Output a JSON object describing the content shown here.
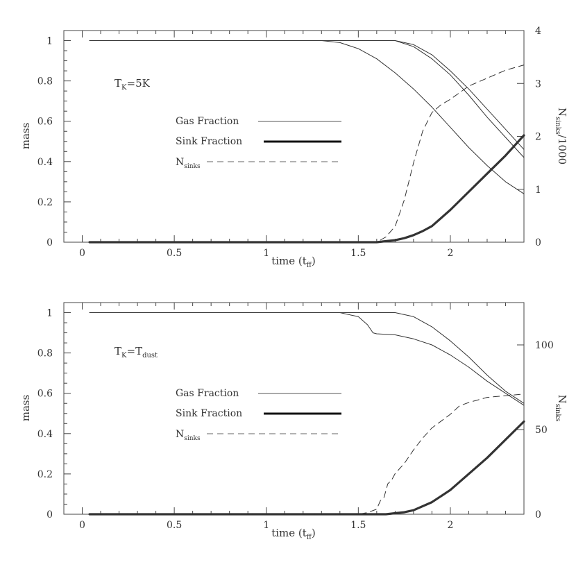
{
  "chart_data": [
    {
      "type": "line",
      "panel": "top",
      "annotation": {
        "base": "T",
        "sub": "K",
        "rest": "=5K"
      },
      "xlabel": {
        "base": "time (t",
        "sub": "ff",
        "rest": ")"
      },
      "ylabel": "mass",
      "y2label": {
        "base": "N",
        "sub": "sinks",
        "rest": "/1000"
      },
      "xlim": [
        -0.1,
        2.4
      ],
      "ylim": [
        0,
        1.05
      ],
      "y2lim": [
        0,
        4
      ],
      "x_ticks": [
        0,
        0.5,
        1,
        1.5,
        2
      ],
      "x_tick_labels": [
        "0",
        "0.5",
        "1",
        "1.5",
        "2"
      ],
      "y_ticks": [
        0,
        0.2,
        0.4,
        0.6,
        0.8,
        1
      ],
      "y_tick_labels": [
        "0",
        "0.2",
        "0.4",
        "0.6",
        "0.8",
        "1"
      ],
      "y2_ticks": [
        0,
        1,
        2,
        3,
        4
      ],
      "y2_tick_labels": [
        "0",
        "1",
        "2",
        "3",
        "4"
      ],
      "legend": [
        {
          "label": "Gas Fraction",
          "style": "thin"
        },
        {
          "label": "Sink Fraction",
          "style": "thick"
        },
        {
          "label": {
            "base": "N",
            "sub": "sinks",
            "rest": ""
          },
          "style": "dashed"
        }
      ],
      "series": [
        {
          "style": "thin",
          "axis": "left",
          "x": [
            0.04,
            1.3,
            1.4,
            1.5,
            1.6,
            1.7,
            1.8,
            1.9,
            2.0,
            2.1,
            2.2,
            2.3,
            2.4
          ],
          "y": [
            1.0,
            1.0,
            0.99,
            0.96,
            0.91,
            0.84,
            0.76,
            0.67,
            0.57,
            0.47,
            0.38,
            0.3,
            0.24
          ]
        },
        {
          "style": "thin",
          "axis": "left",
          "x": [
            0.04,
            1.7,
            1.8,
            1.9,
            2.0,
            2.1,
            2.2,
            2.3,
            2.4
          ],
          "y": [
            1.0,
            1.0,
            0.98,
            0.93,
            0.85,
            0.76,
            0.66,
            0.56,
            0.46
          ]
        },
        {
          "style": "thin",
          "axis": "left",
          "x": [
            0.04,
            1.7,
            1.8,
            1.9,
            2.0,
            2.1,
            2.2,
            2.3,
            2.4
          ],
          "y": [
            1.0,
            1.0,
            0.97,
            0.91,
            0.83,
            0.73,
            0.62,
            0.52,
            0.42
          ]
        },
        {
          "style": "thick",
          "axis": "left",
          "x": [
            0.04,
            1.6,
            1.65,
            1.7,
            1.75,
            1.8,
            1.85,
            1.9,
            2.0,
            2.1,
            2.2,
            2.3,
            2.4
          ],
          "y": [
            0.0,
            0.0,
            0.005,
            0.01,
            0.02,
            0.035,
            0.055,
            0.08,
            0.16,
            0.25,
            0.34,
            0.43,
            0.53
          ]
        },
        {
          "style": "dashed",
          "axis": "right",
          "x": [
            0.04,
            1.6,
            1.65,
            1.7,
            1.75,
            1.8,
            1.85,
            1.9,
            1.95,
            2.0,
            2.1,
            2.2,
            2.3,
            2.4
          ],
          "y": [
            0.0,
            0.0,
            0.1,
            0.3,
            0.8,
            1.5,
            2.1,
            2.45,
            2.6,
            2.7,
            2.95,
            3.1,
            3.25,
            3.35
          ]
        }
      ]
    },
    {
      "type": "line",
      "panel": "bottom",
      "annotation": {
        "base": "T",
        "sub": "K",
        "rest": "=T",
        "sub2": "dust"
      },
      "xlabel": {
        "base": "time (t",
        "sub": "ff",
        "rest": ")"
      },
      "ylabel": "mass",
      "y2label": {
        "base": "N",
        "sub": "sinks",
        "rest": ""
      },
      "xlim": [
        -0.1,
        2.4
      ],
      "ylim": [
        0,
        1.05
      ],
      "y2lim": [
        0,
        125
      ],
      "x_ticks": [
        0,
        0.5,
        1,
        1.5,
        2
      ],
      "x_tick_labels": [
        "0",
        "0.5",
        "1",
        "1.5",
        "2"
      ],
      "y_ticks": [
        0,
        0.2,
        0.4,
        0.6,
        0.8,
        1
      ],
      "y_tick_labels": [
        "0",
        "0.2",
        "0.4",
        "0.6",
        "0.8",
        "1"
      ],
      "y2_ticks": [
        0,
        50,
        100
      ],
      "y2_tick_labels": [
        "0",
        "50",
        "100"
      ],
      "legend": [
        {
          "label": "Gas Fraction",
          "style": "thin"
        },
        {
          "label": "Sink Fraction",
          "style": "thick"
        },
        {
          "label": {
            "base": "N",
            "sub": "sinks",
            "rest": ""
          },
          "style": "dashed"
        }
      ],
      "series": [
        {
          "style": "thin",
          "axis": "left",
          "x": [
            0.04,
            1.4,
            1.5,
            1.55,
            1.58,
            1.6,
            1.7,
            1.8,
            1.9,
            2.0,
            2.1,
            2.2,
            2.3,
            2.4
          ],
          "y": [
            1.0,
            1.0,
            0.98,
            0.94,
            0.9,
            0.895,
            0.89,
            0.87,
            0.84,
            0.79,
            0.73,
            0.66,
            0.6,
            0.54
          ]
        },
        {
          "style": "thin",
          "axis": "left",
          "x": [
            0.04,
            1.7,
            1.8,
            1.9,
            2.0,
            2.1,
            2.2,
            2.3,
            2.4
          ],
          "y": [
            1.0,
            1.0,
            0.98,
            0.93,
            0.86,
            0.78,
            0.69,
            0.61,
            0.55
          ]
        },
        {
          "style": "thick",
          "axis": "left",
          "x": [
            0.04,
            1.65,
            1.7,
            1.75,
            1.8,
            1.9,
            2.0,
            2.1,
            2.2,
            2.3,
            2.4
          ],
          "y": [
            0.0,
            0.0,
            0.005,
            0.01,
            0.02,
            0.06,
            0.12,
            0.2,
            0.28,
            0.37,
            0.46
          ]
        },
        {
          "style": "dashed",
          "axis": "right",
          "x": [
            0.04,
            1.5,
            1.55,
            1.6,
            1.62,
            1.64,
            1.66,
            1.68,
            1.7,
            1.75,
            1.8,
            1.85,
            1.9,
            1.95,
            2.0,
            2.05,
            2.1,
            2.2,
            2.3,
            2.4
          ],
          "y": [
            0.0,
            0.0,
            1,
            3,
            8,
            10,
            18,
            20,
            24,
            30,
            38,
            45,
            51,
            55,
            59,
            64,
            66,
            69,
            70,
            71
          ]
        }
      ]
    }
  ]
}
